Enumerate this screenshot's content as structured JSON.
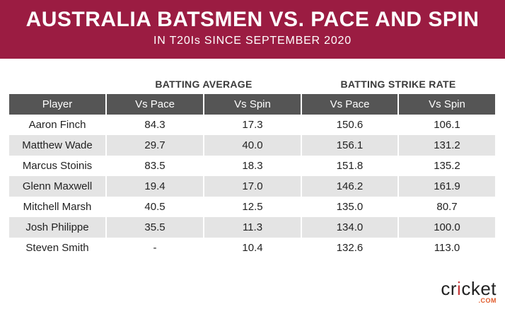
{
  "header": {
    "title": "AUSTRALIA BATSMEN VS. PACE AND SPIN",
    "subtitle": "IN T20Is SINCE SEPTEMBER 2020"
  },
  "groups": {
    "batting_average": "BATTING AVERAGE",
    "batting_strike_rate": "BATTING STRIKE RATE"
  },
  "colors": {
    "banner": "#9b1c42",
    "table_header": "#555555",
    "row_stripe": "#e4e4e4"
  },
  "chart_data": {
    "type": "table",
    "columns": [
      "Player",
      "Vs Pace",
      "Vs Spin",
      "Vs Pace",
      "Vs Spin"
    ],
    "rows": [
      [
        "Aaron Finch",
        "84.3",
        "17.3",
        "150.6",
        "106.1"
      ],
      [
        "Matthew Wade",
        "29.7",
        "40.0",
        "156.1",
        "131.2"
      ],
      [
        "Marcus Stoinis",
        "83.5",
        "18.3",
        "151.8",
        "135.2"
      ],
      [
        "Glenn Maxwell",
        "19.4",
        "17.0",
        "146.2",
        "161.9"
      ],
      [
        "Mitchell Marsh",
        "40.5",
        "12.5",
        "135.0",
        "80.7"
      ],
      [
        "Josh Philippe",
        "35.5",
        "11.3",
        "134.0",
        "100.0"
      ],
      [
        "Steven Smith",
        "-",
        "10.4",
        "132.6",
        "113.0"
      ]
    ]
  },
  "logo": {
    "text_pre": "cr",
    "text_dot": "i",
    "text_post": "cket",
    "suffix": ".COM"
  }
}
